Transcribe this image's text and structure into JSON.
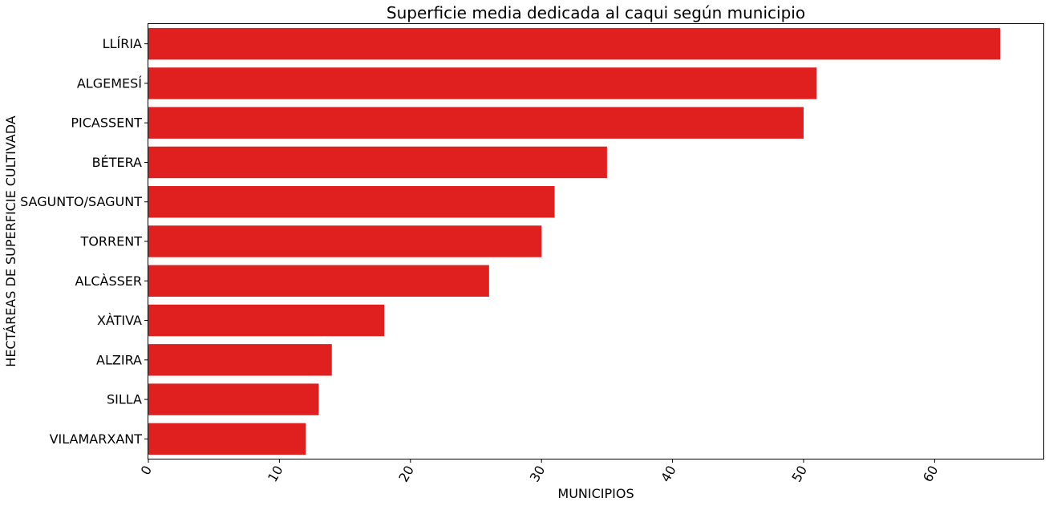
{
  "chart_data": {
    "type": "bar",
    "orientation": "horizontal",
    "title": "Superficie media dedicada al caqui según municipio",
    "xlabel": "MUNICIPIOS",
    "ylabel": "HECTÁREAS DE SUPERFICIE CULTIVADA",
    "categories": [
      "LLÍRIA",
      "ALGEMESÍ",
      "PICASSENT",
      "BÉTERA",
      "SAGUNTO/SAGUNT",
      "TORRENT",
      "ALCÀSSER",
      "XÀTIVA",
      "ALZIRA",
      "SILLA",
      "VILAMARXANT"
    ],
    "values": [
      65,
      51,
      50,
      35,
      31,
      30,
      26,
      18,
      14,
      13,
      12
    ],
    "xticks": [
      "0",
      "10",
      "20",
      "30",
      "40",
      "50",
      "60"
    ],
    "xlim": [
      0,
      68.3
    ],
    "grid": false,
    "bar_color": "#e01f1f"
  }
}
